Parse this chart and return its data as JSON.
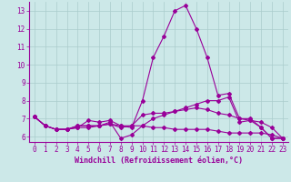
{
  "xlabel": "Windchill (Refroidissement éolien,°C)",
  "background_color": "#cce8e8",
  "grid_color": "#aacccc",
  "line_color": "#990099",
  "spine_color": "#660066",
  "xlim": [
    -0.5,
    23.5
  ],
  "ylim": [
    5.7,
    13.5
  ],
  "xticks": [
    0,
    1,
    2,
    3,
    4,
    5,
    6,
    7,
    8,
    9,
    10,
    11,
    12,
    13,
    14,
    15,
    16,
    17,
    18,
    19,
    20,
    21,
    22,
    23
  ],
  "yticks": [
    6,
    7,
    8,
    9,
    10,
    11,
    12,
    13
  ],
  "series": [
    [
      7.1,
      6.6,
      6.4,
      6.4,
      6.5,
      6.9,
      6.8,
      6.9,
      6.6,
      6.5,
      8.0,
      10.4,
      11.6,
      13.0,
      13.3,
      12.0,
      10.4,
      8.3,
      8.4,
      7.0,
      7.0,
      6.5,
      5.9,
      5.9
    ],
    [
      7.1,
      6.6,
      6.4,
      6.4,
      6.5,
      6.5,
      6.6,
      6.8,
      5.9,
      6.1,
      6.6,
      7.0,
      7.2,
      7.4,
      7.6,
      7.8,
      8.0,
      8.0,
      8.2,
      6.8,
      6.9,
      6.5,
      5.9,
      5.9
    ],
    [
      7.1,
      6.6,
      6.4,
      6.4,
      6.6,
      6.6,
      6.6,
      6.7,
      6.5,
      6.6,
      7.2,
      7.3,
      7.3,
      7.4,
      7.5,
      7.6,
      7.5,
      7.3,
      7.2,
      7.0,
      6.9,
      6.8,
      6.5,
      5.9
    ],
    [
      7.1,
      6.6,
      6.4,
      6.4,
      6.6,
      6.6,
      6.6,
      6.7,
      6.6,
      6.6,
      6.6,
      6.5,
      6.5,
      6.4,
      6.4,
      6.4,
      6.4,
      6.3,
      6.2,
      6.2,
      6.2,
      6.2,
      6.1,
      5.9
    ]
  ],
  "tick_fontsize": 5.5,
  "xlabel_fontsize": 6.0
}
